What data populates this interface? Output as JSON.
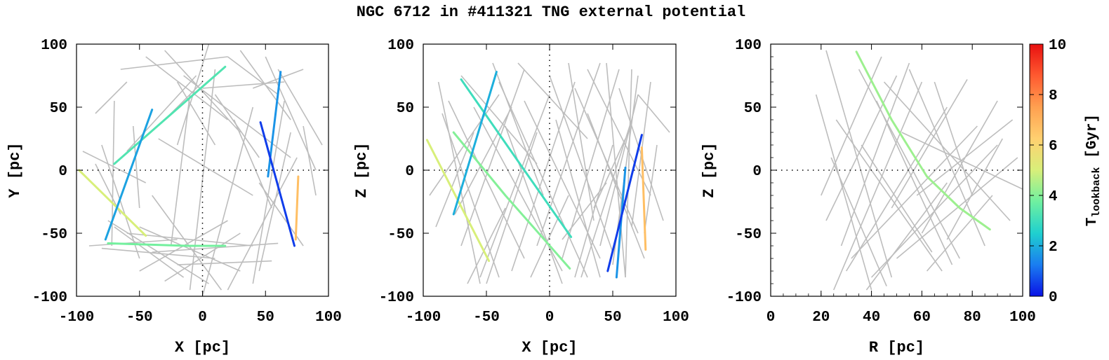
{
  "title": "NGC 6712 in #411321 TNG external potential",
  "colorbar": {
    "label_main": "T",
    "label_sub": "lookback",
    "label_unit": " [Gyr]",
    "range": [
      0,
      10
    ],
    "ticks": [
      "0",
      "2",
      "4",
      "6",
      "8",
      "10"
    ],
    "gradient": [
      "#0a12e6",
      "#1a7df0",
      "#1fd0cf",
      "#6ff0a0",
      "#d8ef7a",
      "#ffd070",
      "#ffa050",
      "#ff5a30",
      "#e81010"
    ]
  },
  "chart_data": [
    {
      "type": "line",
      "xlabel": "X [pc]",
      "ylabel": "Y [pc]",
      "xlim": [
        -100,
        100
      ],
      "ylim": [
        -100,
        100
      ],
      "xticks": [
        "-100",
        "-50",
        "0",
        "50",
        "100"
      ],
      "yticks": [
        "-100",
        "-50",
        "0",
        "50",
        "100"
      ],
      "zero_lines": true,
      "background_segments": [
        [
          -90,
          -60,
          -20,
          -55
        ],
        [
          -80,
          -62,
          10,
          -70
        ],
        [
          -70,
          -45,
          -15,
          -85
        ],
        [
          -60,
          -50,
          40,
          -60
        ],
        [
          -50,
          -80,
          20,
          -40
        ],
        [
          -40,
          -65,
          60,
          -58
        ],
        [
          -30,
          -88,
          30,
          -50
        ],
        [
          -20,
          -75,
          55,
          -72
        ],
        [
          -75,
          -40,
          5,
          -90
        ],
        [
          -60,
          15,
          -5,
          75
        ],
        [
          -45,
          90,
          20,
          40
        ],
        [
          -30,
          95,
          30,
          30
        ],
        [
          -15,
          75,
          70,
          10
        ],
        [
          5,
          100,
          -20,
          20
        ],
        [
          20,
          90,
          60,
          60
        ],
        [
          30,
          95,
          70,
          40
        ],
        [
          40,
          65,
          80,
          80
        ],
        [
          50,
          90,
          90,
          0
        ],
        [
          60,
          80,
          95,
          20
        ],
        [
          65,
          55,
          40,
          -90
        ],
        [
          70,
          30,
          45,
          -80
        ],
        [
          75,
          10,
          20,
          -95
        ],
        [
          40,
          50,
          0,
          -100
        ],
        [
          10,
          80,
          -10,
          -95
        ],
        [
          -10,
          60,
          -25,
          -60
        ],
        [
          -40,
          -20,
          15,
          -95
        ],
        [
          -95,
          15,
          -45,
          -10
        ],
        [
          -85,
          45,
          -60,
          70
        ],
        [
          -70,
          55,
          -72,
          -60
        ],
        [
          -85,
          5,
          -65,
          -35
        ],
        [
          -55,
          35,
          -50,
          -30
        ],
        [
          -65,
          80,
          20,
          90
        ],
        [
          -20,
          70,
          10,
          20
        ],
        [
          10,
          60,
          45,
          10
        ],
        [
          0,
          65,
          65,
          70
        ],
        [
          -35,
          25,
          40,
          -20
        ],
        [
          25,
          40,
          55,
          -30
        ],
        [
          80,
          35,
          90,
          -20
        ],
        [
          -30,
          40,
          0,
          70
        ],
        [
          -80,
          20,
          -50,
          -70
        ],
        [
          45,
          -10,
          80,
          -60
        ],
        [
          -50,
          -45,
          30,
          -80
        ]
      ],
      "series": [
        {
          "t": 5.0,
          "points": [
            [
              -98,
              0
            ],
            [
              -45,
              -52
            ]
          ]
        },
        {
          "t": 3.8,
          "points": [
            [
              -75,
              -58
            ],
            [
              -12,
              -60
            ],
            [
              18,
              -60
            ]
          ]
        },
        {
          "t": 3.3,
          "points": [
            [
              -70,
              5
            ],
            [
              -30,
              40
            ],
            [
              18,
              82
            ]
          ]
        },
        {
          "t": 1.8,
          "points": [
            [
              -77,
              -55
            ],
            [
              -40,
              48
            ]
          ]
        },
        {
          "t": 1.6,
          "points": [
            [
              52,
              -5
            ],
            [
              62,
              78
            ]
          ]
        },
        {
          "t": 0.5,
          "points": [
            [
              46,
              38
            ],
            [
              73,
              -60
            ]
          ]
        },
        {
          "t": 6.7,
          "points": [
            [
              76,
              -5
            ],
            [
              74,
              -55
            ]
          ]
        }
      ]
    },
    {
      "type": "line",
      "xlabel": "X [pc]",
      "ylabel": "Z [pc]",
      "xlim": [
        -100,
        100
      ],
      "ylim": [
        -100,
        100
      ],
      "xticks": [
        "-100",
        "-50",
        "0",
        "50",
        "100"
      ],
      "yticks": [
        "-100",
        "-50",
        "0",
        "50",
        "100"
      ],
      "zero_lines": true,
      "background_segments": [
        [
          -90,
          -45,
          -60,
          30
        ],
        [
          -85,
          45,
          -40,
          -85
        ],
        [
          -80,
          55,
          -20,
          -70
        ],
        [
          -70,
          -60,
          -20,
          80
        ],
        [
          -60,
          50,
          10,
          -80
        ],
        [
          -55,
          -85,
          0,
          60
        ],
        [
          -40,
          70,
          30,
          -85
        ],
        [
          -30,
          -80,
          20,
          70
        ],
        [
          -20,
          55,
          40,
          -70
        ],
        [
          -10,
          -60,
          40,
          85
        ],
        [
          0,
          75,
          50,
          -65
        ],
        [
          10,
          -70,
          55,
          80
        ],
        [
          20,
          65,
          70,
          -50
        ],
        [
          25,
          -85,
          65,
          40
        ],
        [
          30,
          80,
          80,
          -20
        ],
        [
          40,
          -60,
          70,
          60
        ],
        [
          45,
          85,
          60,
          -85
        ],
        [
          50,
          -75,
          70,
          75
        ],
        [
          55,
          65,
          90,
          -40
        ],
        [
          60,
          -85,
          65,
          80
        ],
        [
          70,
          60,
          95,
          30
        ],
        [
          75,
          -50,
          85,
          20
        ],
        [
          -95,
          -20,
          -40,
          60
        ],
        [
          -75,
          -35,
          -30,
          50
        ],
        [
          -50,
          -90,
          -10,
          30
        ],
        [
          -35,
          35,
          10,
          -90
        ],
        [
          -25,
          85,
          30,
          25
        ],
        [
          10,
          -55,
          45,
          -10
        ],
        [
          20,
          -85,
          50,
          20
        ],
        [
          30,
          45,
          75,
          -70
        ],
        [
          -88,
          70,
          -55,
          -90
        ],
        [
          -65,
          -90,
          -35,
          -30
        ],
        [
          15,
          85,
          35,
          -40
        ],
        [
          35,
          -30,
          60,
          25
        ],
        [
          -15,
          -85,
          15,
          -20
        ],
        [
          -45,
          85,
          -5,
          -20
        ],
        [
          5,
          40,
          40,
          -85
        ],
        [
          -70,
          75,
          -10,
          5
        ],
        [
          65,
          -45,
          80,
          70
        ]
      ],
      "series": [
        {
          "t": 5.0,
          "points": [
            [
              -97,
              24
            ],
            [
              -48,
              -72
            ]
          ]
        },
        {
          "t": 4.0,
          "points": [
            [
              -76,
              30
            ],
            [
              -35,
              -20
            ],
            [
              16,
              -78
            ]
          ]
        },
        {
          "t": 3.0,
          "points": [
            [
              -70,
              72
            ],
            [
              -20,
              0
            ],
            [
              17,
              -53
            ]
          ]
        },
        {
          "t": 2.0,
          "points": [
            [
              -76,
              -35
            ],
            [
              -42,
              78
            ]
          ]
        },
        {
          "t": 1.6,
          "points": [
            [
              60,
              2
            ],
            [
              53,
              -85
            ]
          ]
        },
        {
          "t": 0.5,
          "points": [
            [
              46,
              -80
            ],
            [
              73,
              28
            ]
          ]
        },
        {
          "t": 6.7,
          "points": [
            [
              73,
              18
            ],
            [
              76,
              -63
            ]
          ]
        }
      ]
    },
    {
      "type": "line",
      "xlabel": "R [pc]",
      "ylabel": "Z [pc]",
      "xlim": [
        0,
        100
      ],
      "ylim": [
        -100,
        100
      ],
      "xticks": [
        "0",
        "20",
        "40",
        "60",
        "80",
        "100"
      ],
      "yticks": [
        "-100",
        "-50",
        "0",
        "50",
        "100"
      ],
      "zero_lines": true,
      "background_segments": [
        [
          22,
          95,
          48,
          -85
        ],
        [
          18,
          60,
          40,
          -95
        ],
        [
          25,
          -95,
          60,
          70
        ],
        [
          30,
          -80,
          70,
          50
        ],
        [
          35,
          80,
          75,
          -70
        ],
        [
          28,
          -60,
          55,
          85
        ],
        [
          40,
          -85,
          90,
          20
        ],
        [
          45,
          70,
          95,
          -40
        ],
        [
          50,
          -70,
          98,
          10
        ],
        [
          55,
          80,
          85,
          -60
        ],
        [
          60,
          -50,
          90,
          55
        ],
        [
          65,
          70,
          80,
          -20
        ],
        [
          22,
          -40,
          50,
          75
        ],
        [
          26,
          40,
          68,
          -80
        ],
        [
          32,
          -70,
          82,
          35
        ],
        [
          42,
          55,
          72,
          -75
        ],
        [
          48,
          -30,
          78,
          72
        ],
        [
          36,
          20,
          64,
          -65
        ],
        [
          58,
          -20,
          96,
          40
        ],
        [
          24,
          10,
          46,
          -92
        ],
        [
          70,
          -55,
          92,
          25
        ],
        [
          38,
          -95,
          70,
          -10
        ],
        [
          20,
          -20,
          44,
          90
        ],
        [
          52,
          30,
          100,
          -15
        ],
        [
          62,
          -80,
          88,
          -20
        ]
      ],
      "series": [
        {
          "t": 4.3,
          "points": [
            [
              34,
              94
            ],
            [
              48,
              40
            ],
            [
              62,
              -5
            ],
            [
              75,
              -30
            ],
            [
              87,
              -47
            ]
          ]
        }
      ]
    }
  ]
}
